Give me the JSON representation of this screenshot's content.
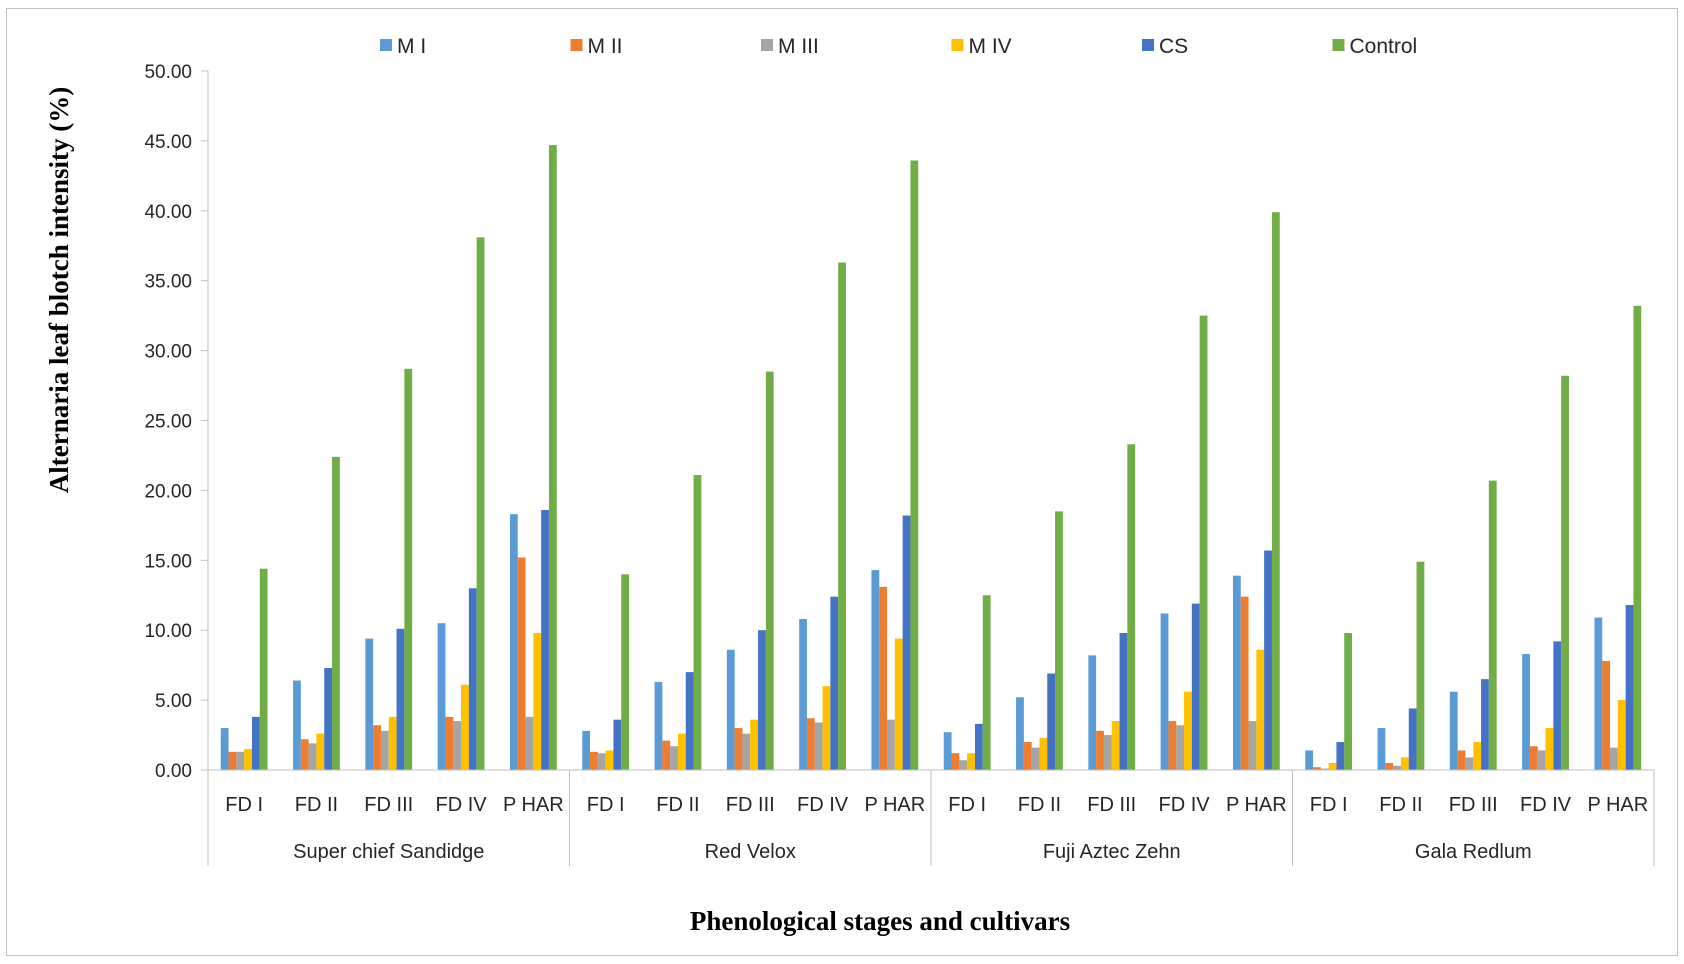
{
  "chart_data": {
    "type": "bar",
    "title": "",
    "xlabel": "Phenological stages and cultivars",
    "ylabel": "Alternaria leaf blotch intensity (%)",
    "ylim": [
      0,
      50
    ],
    "yticks": [
      "0.00",
      "5.00",
      "10.00",
      "15.00",
      "20.00",
      "25.00",
      "30.00",
      "35.00",
      "40.00",
      "45.00",
      "50.00"
    ],
    "grid": false,
    "legend": "top",
    "stages": [
      "FD I",
      "FD II",
      "FD III",
      "FD IV",
      "P HAR"
    ],
    "groups": [
      "Super chief Sandidge",
      "Red Velox",
      "Fuji Aztec Zehn",
      "Gala Redlum"
    ],
    "categories": [
      "FD I",
      "FD II",
      "FD III",
      "FD IV",
      "P HAR",
      "FD I",
      "FD II",
      "FD III",
      "FD IV",
      "P HAR",
      "FD I",
      "FD II",
      "FD III",
      "FD IV",
      "P HAR",
      "FD I",
      "FD II",
      "FD III",
      "FD IV",
      "P HAR"
    ],
    "series": [
      {
        "name": "M I",
        "color": "#5b9bd5",
        "values": [
          3.0,
          6.4,
          9.4,
          10.5,
          18.3,
          2.8,
          6.3,
          8.6,
          10.8,
          14.3,
          2.7,
          5.2,
          8.2,
          11.2,
          13.9,
          1.4,
          3.0,
          5.6,
          8.3,
          10.9
        ]
      },
      {
        "name": "M II",
        "color": "#ed7d31",
        "values": [
          1.3,
          2.2,
          3.2,
          3.8,
          15.2,
          1.3,
          2.1,
          3.0,
          3.7,
          13.1,
          1.2,
          2.0,
          2.8,
          3.5,
          12.4,
          0.2,
          0.5,
          1.4,
          1.7,
          7.8
        ]
      },
      {
        "name": "M III",
        "color": "#a5a5a5",
        "values": [
          1.3,
          1.9,
          2.8,
          3.5,
          3.8,
          1.2,
          1.7,
          2.6,
          3.4,
          3.6,
          0.7,
          1.6,
          2.5,
          3.2,
          3.5,
          0.1,
          0.3,
          0.9,
          1.4,
          1.6
        ]
      },
      {
        "name": "M IV",
        "color": "#ffc000",
        "values": [
          1.5,
          2.6,
          3.8,
          6.1,
          9.8,
          1.4,
          2.6,
          3.6,
          6.0,
          9.4,
          1.2,
          2.3,
          3.5,
          5.6,
          8.6,
          0.5,
          0.9,
          2.0,
          3.0,
          5.0
        ]
      },
      {
        "name": "CS",
        "color": "#4472c4",
        "values": [
          3.8,
          7.3,
          10.1,
          13.0,
          18.6,
          3.6,
          7.0,
          10.0,
          12.4,
          18.2,
          3.3,
          6.9,
          9.8,
          11.9,
          15.7,
          2.0,
          4.4,
          6.5,
          9.2,
          11.8
        ]
      },
      {
        "name": "Control",
        "color": "#70ad47",
        "values": [
          14.4,
          22.4,
          28.7,
          38.1,
          44.7,
          14.0,
          21.1,
          28.5,
          36.3,
          43.6,
          12.5,
          18.5,
          23.3,
          32.5,
          39.9,
          9.8,
          14.9,
          20.7,
          28.2,
          33.2
        ]
      }
    ]
  }
}
